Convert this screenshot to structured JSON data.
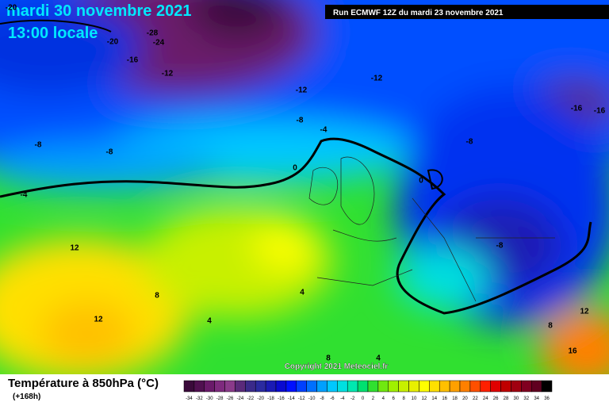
{
  "header": {
    "date": "mardi 30 novembre 2021",
    "time": "13:00 locale",
    "run": "Run ECMWF 12Z du mardi 23 novembre 2021"
  },
  "map": {
    "copyright": "Copyright 2021 Meteociel.fr",
    "contour_labels": [
      -20,
      -28,
      -24,
      -20,
      -16,
      -12,
      -12,
      -12,
      -8,
      -8,
      -8,
      -4,
      0,
      -4,
      0,
      -8,
      -16,
      -16,
      12,
      8,
      12,
      4,
      4,
      8,
      12,
      16,
      4,
      8,
      -8
    ]
  },
  "legend": {
    "title": "Température à 850hPa (°C)",
    "lead": "(+168h)",
    "ticks": [
      -34,
      -32,
      -30,
      -28,
      -26,
      -24,
      -22,
      -20,
      -18,
      -16,
      -14,
      -12,
      -10,
      -8,
      -6,
      -4,
      -2,
      0,
      2,
      4,
      6,
      8,
      10,
      12,
      14,
      16,
      18,
      20,
      22,
      24,
      26,
      28,
      30,
      32,
      34,
      36
    ],
    "colors": [
      "#3a0a3a",
      "#501050",
      "#6a1a6a",
      "#7e2a7e",
      "#8a3a8a",
      "#5a2a7a",
      "#3a2a8a",
      "#2a2aa0",
      "#1a1ab4",
      "#0a0ad0",
      "#0010ff",
      "#0040ff",
      "#0070ff",
      "#00a0ff",
      "#00c8ff",
      "#00e0e0",
      "#00e8b0",
      "#00e070",
      "#30e030",
      "#70e810",
      "#a0f000",
      "#c8f000",
      "#e8f000",
      "#ffff00",
      "#ffe000",
      "#ffc000",
      "#ffa000",
      "#ff8000",
      "#ff5000",
      "#ff2000",
      "#e00000",
      "#c00000",
      "#a00010",
      "#800020",
      "#600020",
      "#000000"
    ]
  }
}
